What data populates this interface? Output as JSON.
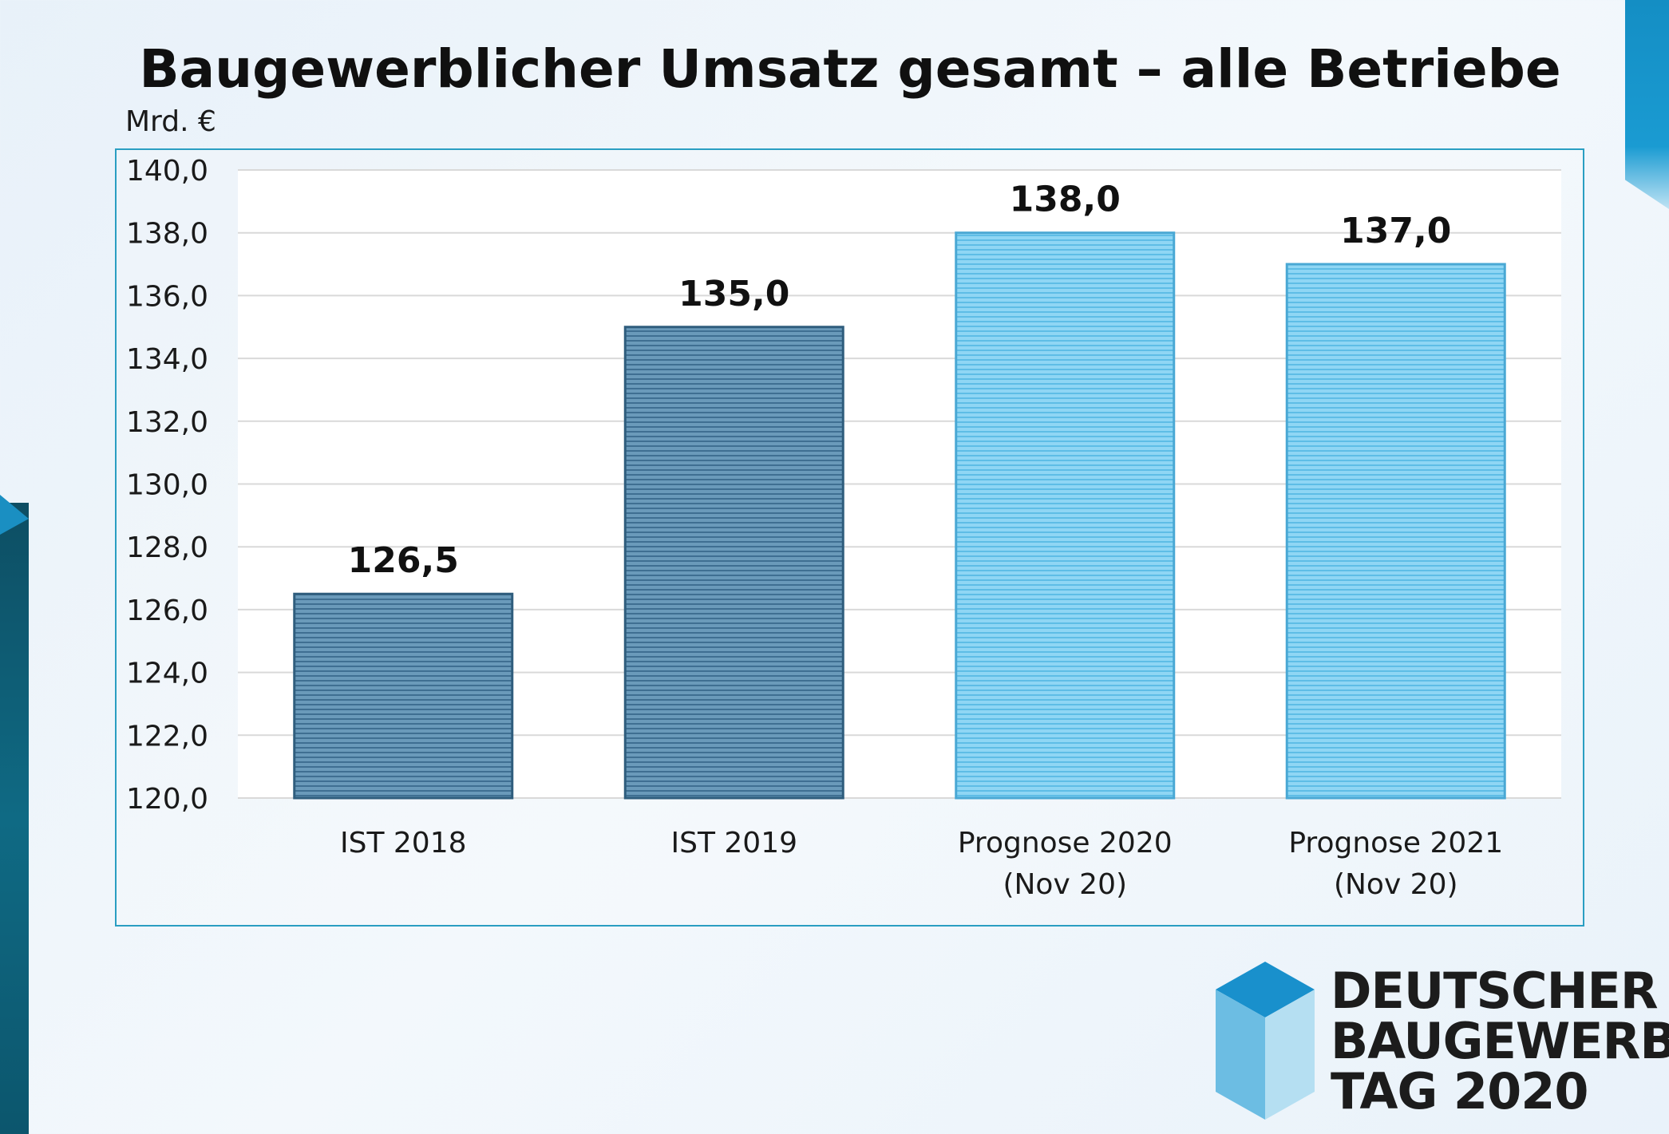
{
  "title": "Baugewerblicher Umsatz gesamt – alle Betriebe",
  "unit_label": "Mrd. €",
  "chart_data": {
    "type": "bar",
    "title": "Baugewerblicher Umsatz gesamt – alle Betriebe",
    "ylabel": "Mrd. €",
    "xlabel": "",
    "ylim": [
      120,
      140
    ],
    "ytick_step": 2,
    "ytick_labels": [
      "120,0",
      "122,0",
      "124,0",
      "126,0",
      "128,0",
      "130,0",
      "132,0",
      "134,0",
      "136,0",
      "138,0",
      "140,0"
    ],
    "grid": true,
    "categories": [
      [
        "IST 2018"
      ],
      [
        "IST 2019"
      ],
      [
        "Prognose 2020",
        "(Nov 20)"
      ],
      [
        "Prognose 2021",
        "(Nov 20)"
      ]
    ],
    "values": [
      126.5,
      135.0,
      138.0,
      137.0
    ],
    "value_labels": [
      "126,5",
      "135,0",
      "138,0",
      "137,0"
    ],
    "bar_colors": [
      "#5f8fb0",
      "#5f8fb0",
      "#7ccdf0",
      "#7ccdf0"
    ]
  },
  "logo": {
    "line1": "DEUTSCHER",
    "line2": "BAUGEWERBE",
    "line3": "TAG 2020",
    "colors": {
      "top": "#1990cc",
      "left": "#6cbde3",
      "right": "#b5dff2"
    }
  }
}
